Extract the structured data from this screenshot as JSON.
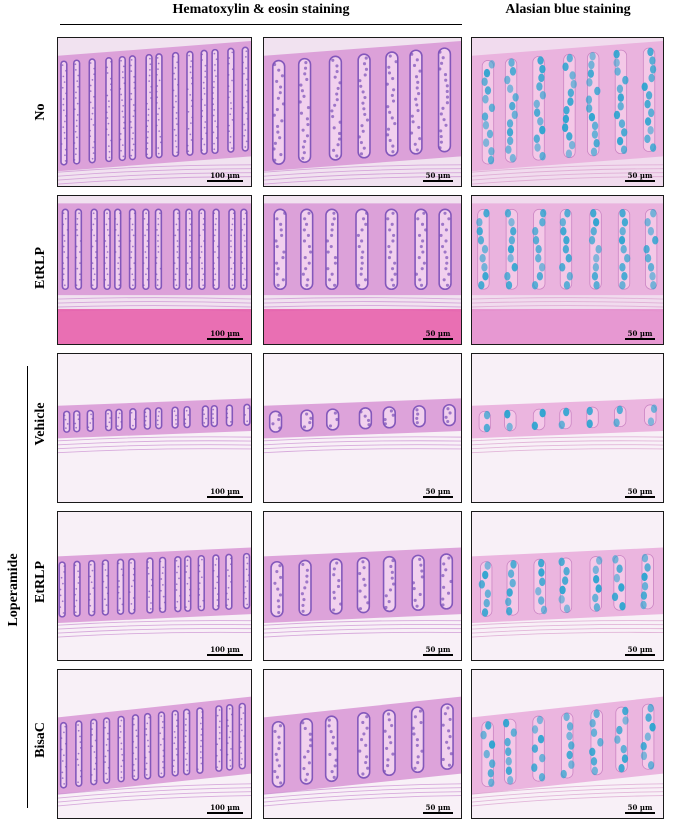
{
  "headers": {
    "he": "Hematoxylin & eosin staining",
    "ab": "Alasian blue staining"
  },
  "group_label": "Loperamide",
  "rows": [
    {
      "label": "No"
    },
    {
      "label": "EtRLP"
    },
    {
      "label": "Vehicle"
    },
    {
      "label": "EtRLP"
    },
    {
      "label": "BisaC"
    }
  ],
  "scale_labels": {
    "low": "100 µm",
    "high": "50 µm"
  },
  "stain_colors": {
    "he_background": "#f1e2f0",
    "he_tissue": "#d99ad6",
    "he_nuclei": "#7a50b8",
    "muscle_band": "#e85aa8",
    "ab_background": "#f1dbee",
    "ab_tissue": "#e9aedb",
    "ab_goblet": "#27a3cf"
  }
}
